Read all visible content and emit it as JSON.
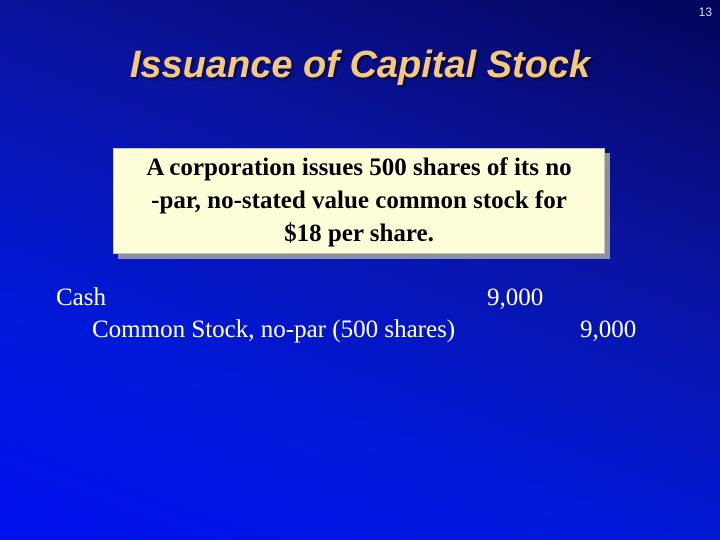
{
  "page_number": "13",
  "title": "Issuance of Capital Stock",
  "problem_lines": [
    "A corporation issues 500 shares of its no",
    "-par, no-stated value common stock  for",
    "$18 per share."
  ],
  "journal_entry": {
    "debit": {
      "account": "Cash",
      "amount": "9,000"
    },
    "credit": {
      "account": "Common Stock, no-par (500 shares)",
      "amount": "9,000"
    }
  },
  "colors": {
    "title": "#f6c97a",
    "box_bg": "#fefed8",
    "background": "#0018d8"
  }
}
